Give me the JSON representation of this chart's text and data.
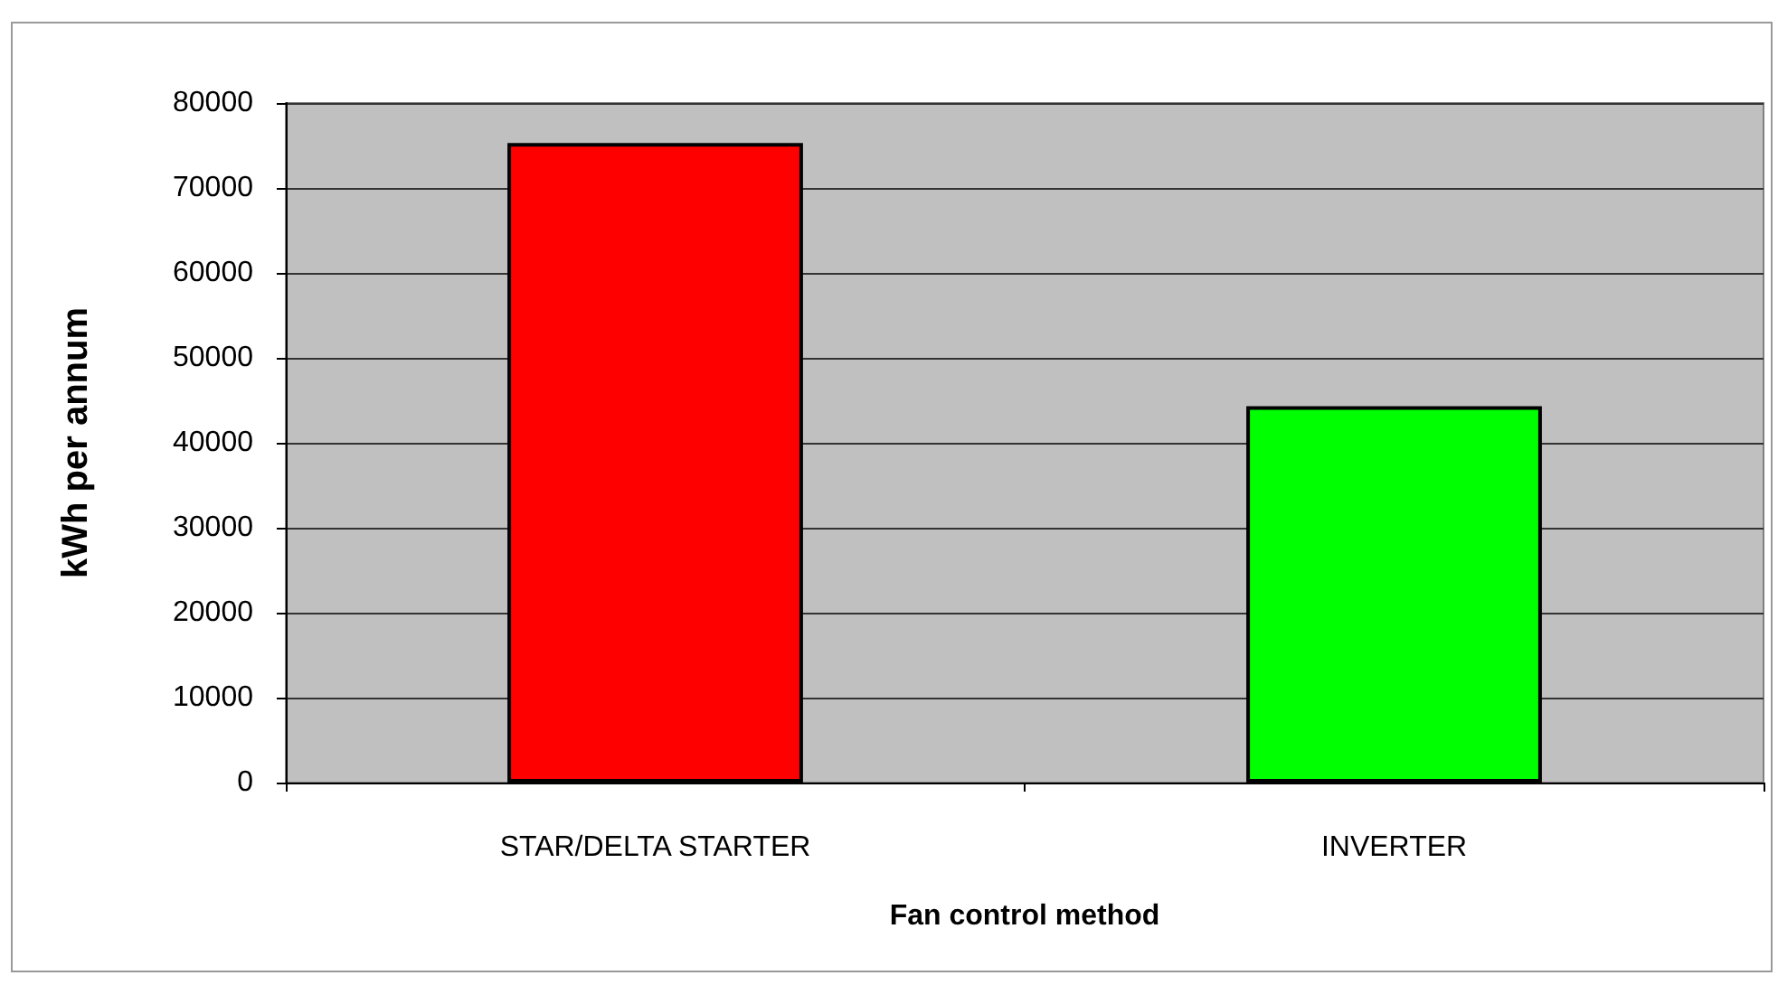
{
  "chart_data": {
    "type": "bar",
    "xlabel": "Fan control method",
    "ylabel": "kWh per annum",
    "categories": [
      "STAR/DELTA STARTER",
      "INVERTER"
    ],
    "values": [
      75300,
      44300
    ],
    "colors": [
      "#ff0000",
      "#00ff00"
    ],
    "ylim": [
      0,
      80000
    ],
    "yticks": [
      0,
      10000,
      20000,
      30000,
      40000,
      50000,
      60000,
      70000,
      80000
    ],
    "grid": "y"
  }
}
